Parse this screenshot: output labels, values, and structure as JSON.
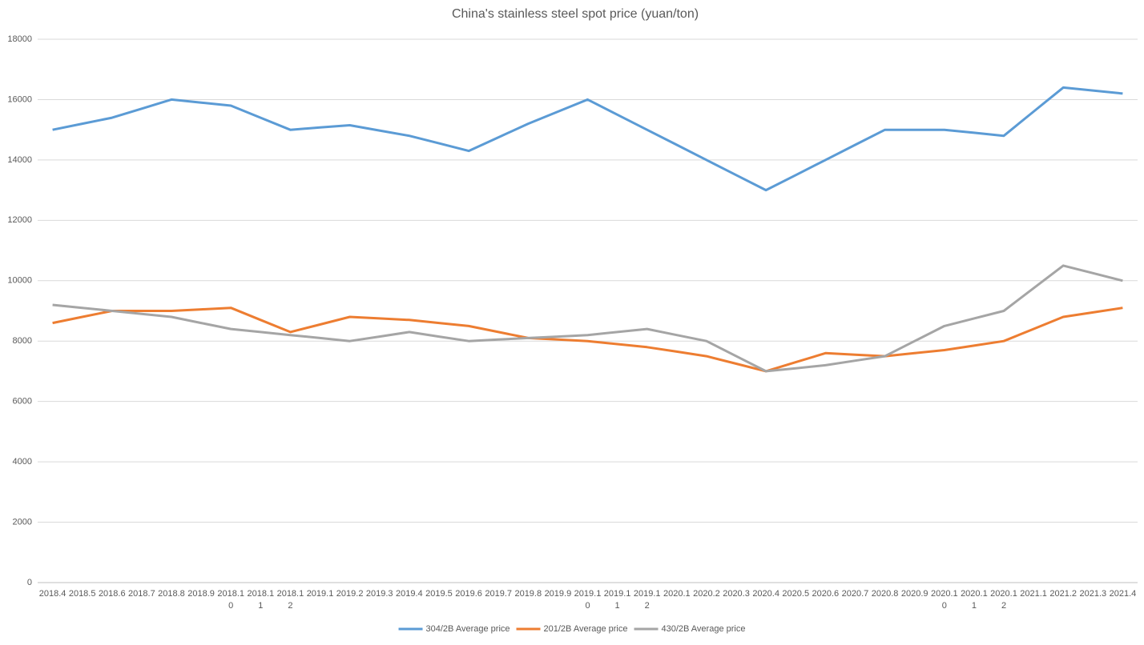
{
  "chart_data": {
    "type": "line",
    "title": "China's stainless steel spot price (yuan/ton)",
    "categories": [
      "2018.4",
      "2018.5",
      "2018.6",
      "2018.7",
      "2018.8",
      "2018.9",
      "2018.10",
      "2018.11",
      "2018.12",
      "2019.1",
      "2019.2",
      "2019.3",
      "2019.4",
      "2019.5",
      "2019.6",
      "2019.7",
      "2019.8",
      "2019.9",
      "2019.10",
      "2019.11",
      "2019.12",
      "2020.1",
      "2020.2",
      "2020.3",
      "2020.4",
      "2020.5",
      "2020.6",
      "2020.7",
      "2020.8",
      "2020.9",
      "2020.10",
      "2020.11",
      "2020.12",
      "2021.1",
      "2021.2",
      "2021.3",
      "2021.4"
    ],
    "series": [
      {
        "name": "304/2B Average price",
        "color": "#5b9bd5",
        "values": [
          15000,
          15200,
          15400,
          15700,
          16000,
          15900,
          15800,
          15400,
          15000,
          15075,
          15150,
          14975,
          14800,
          14550,
          14300,
          14750,
          15200,
          15600,
          16000,
          15500,
          15000,
          14500,
          14000,
          13500,
          13000,
          13500,
          14000,
          14500,
          15000,
          15000,
          15000,
          14900,
          14800,
          15600,
          16400,
          16300,
          16200
        ]
      },
      {
        "name": "201/2B Average price",
        "color": "#ed7d31",
        "values": [
          8600,
          8800,
          9000,
          9000,
          9000,
          9050,
          9100,
          8700,
          8300,
          8550,
          8800,
          8750,
          8700,
          8600,
          8500,
          8300,
          8100,
          8050,
          8000,
          7900,
          7800,
          7650,
          7500,
          7250,
          7000,
          7300,
          7600,
          7550,
          7500,
          7600,
          7700,
          7850,
          8000,
          8400,
          8800,
          8950,
          9100
        ]
      },
      {
        "name": "430/2B Average price",
        "color": "#a5a5a5",
        "values": [
          9200,
          9100,
          9000,
          8900,
          8800,
          8600,
          8400,
          8300,
          8200,
          8100,
          8000,
          8150,
          8300,
          8150,
          8000,
          8050,
          8100,
          8150,
          8200,
          8300,
          8400,
          8200,
          8000,
          7500,
          7000,
          7100,
          7200,
          7350,
          7500,
          8000,
          8500,
          8750,
          9000,
          9750,
          10500,
          10250,
          10000
        ]
      }
    ],
    "ylim": [
      0,
      18000
    ],
    "yticks": [
      0,
      2000,
      4000,
      6000,
      8000,
      10000,
      12000,
      14000,
      16000,
      18000
    ],
    "grid": true,
    "legend": "bottom"
  }
}
